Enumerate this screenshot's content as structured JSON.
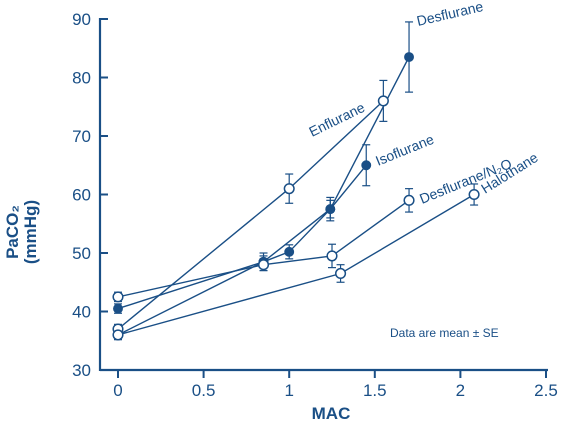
{
  "chart_data": {
    "type": "line",
    "xlabel": "MAC",
    "ylabel_line1": "PaCO₂",
    "ylabel_line2": "(mmHg)",
    "xlim": [
      0,
      2.5
    ],
    "ylim": [
      30,
      90
    ],
    "x_ticks": [
      "0",
      "0.5",
      "1",
      "1.5",
      "2",
      "2.5"
    ],
    "y_ticks": [
      "30",
      "40",
      "50",
      "60",
      "70",
      "80",
      "90"
    ],
    "grid": false,
    "note": "Data are mean ± SE",
    "colors": {
      "axis": "#1a4f86",
      "series": "#1a4f86",
      "open_fill": "#ffffff"
    },
    "series": [
      {
        "name": "Desflurane",
        "marker": "filled",
        "x": [
          0,
          0.85,
          1.0,
          1.24,
          1.7
        ],
        "y": [
          36.0,
          48.5,
          50.2,
          57.5,
          83.5
        ],
        "se": [
          0.8,
          1.0,
          1.2,
          1.5,
          6.0
        ]
      },
      {
        "name": "Enflurane",
        "marker": "open",
        "x": [
          0,
          1.0,
          1.55
        ],
        "y": [
          37.0,
          61.0,
          76.0
        ],
        "se": [
          0.8,
          2.5,
          3.5
        ]
      },
      {
        "name": "Isoflurane",
        "marker": "filled",
        "x": [
          0,
          0.85,
          1.24,
          1.45
        ],
        "y": [
          40.5,
          48.5,
          57.5,
          65.0
        ],
        "se": [
          0.8,
          1.5,
          2.0,
          3.5
        ]
      },
      {
        "name": "Desflurane/N₂O",
        "marker": "open",
        "x": [
          0,
          0.85,
          1.25,
          1.7
        ],
        "y": [
          42.5,
          48.0,
          49.5,
          59.0
        ],
        "se": [
          0.8,
          1.0,
          2.0,
          2.0
        ]
      },
      {
        "name": "Halothane",
        "marker": "open",
        "x": [
          0,
          1.3,
          2.08
        ],
        "y": [
          36.0,
          46.5,
          60.0
        ],
        "se": [
          0.8,
          1.5,
          1.8
        ]
      }
    ]
  }
}
